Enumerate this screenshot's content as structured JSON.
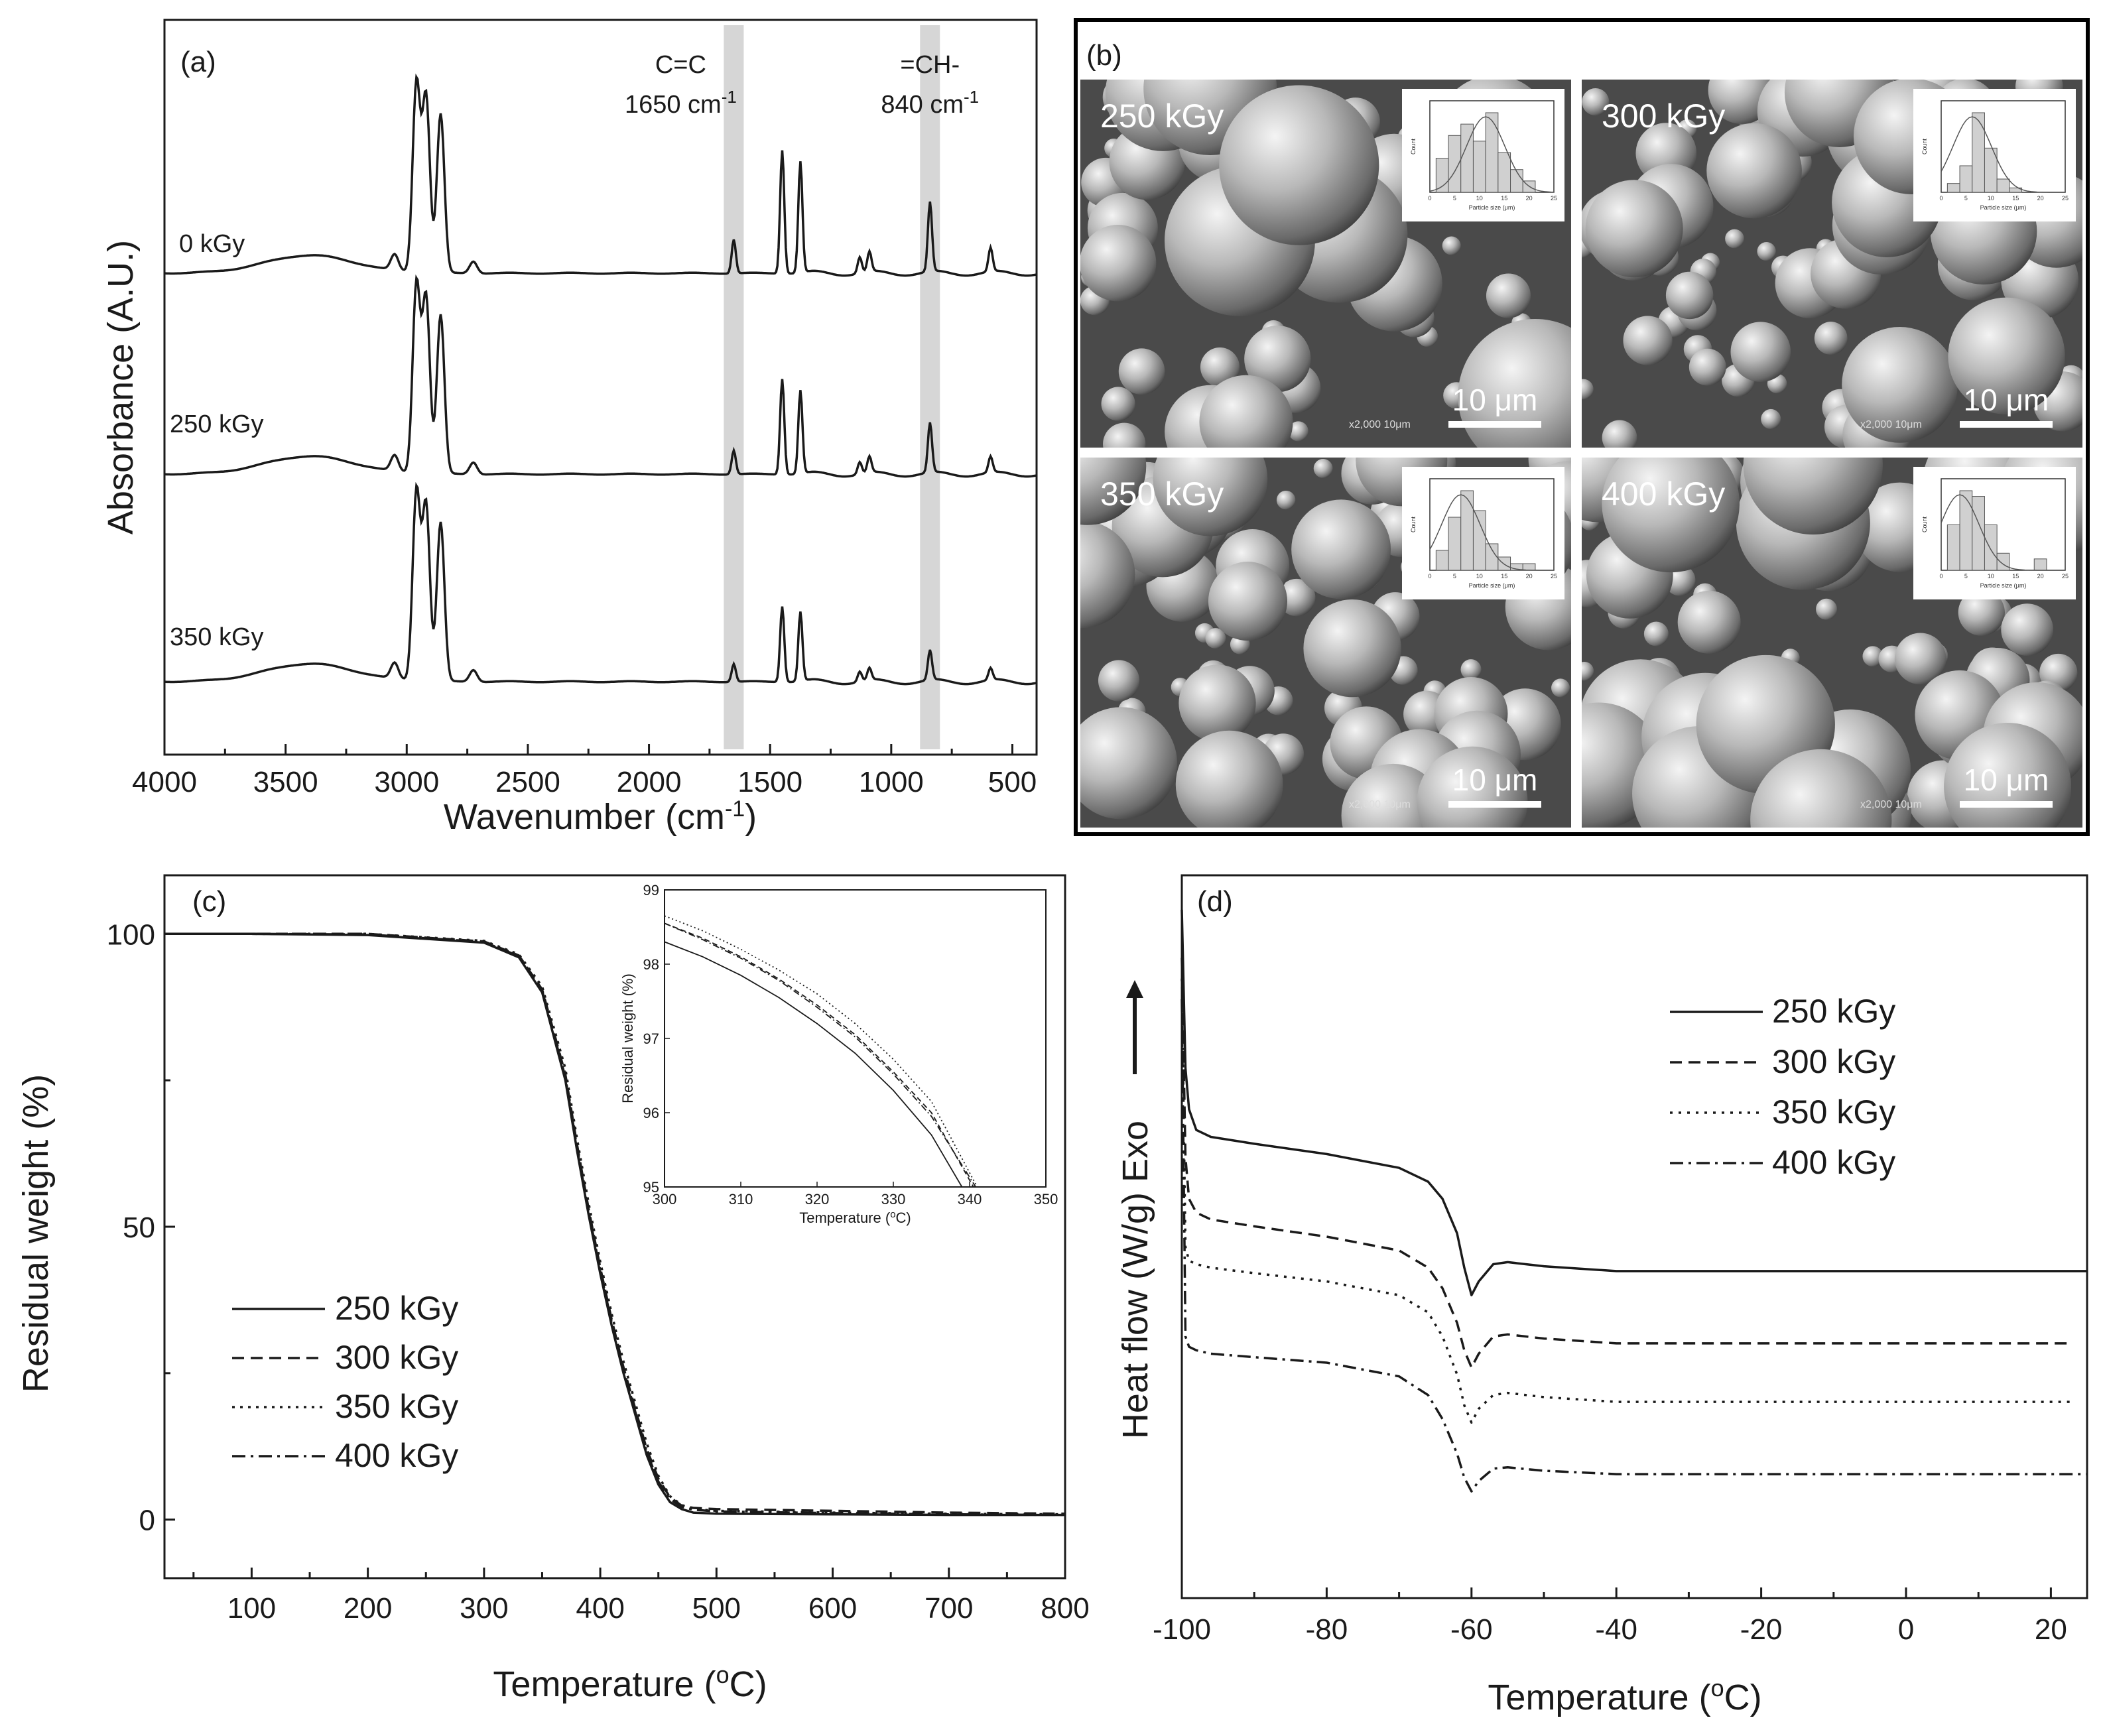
{
  "chart_data": [
    {
      "id": "a",
      "panel_label": "(a)",
      "type": "line",
      "xlabel_main": "Wavenumber (cm",
      "xlabel_sup": "-1",
      "xlabel_end": ")",
      "ylabel": "Absorbance (A.U.)",
      "xlim": [
        4000,
        400
      ],
      "xticks": [
        "4000",
        "3500",
        "3000",
        "2500",
        "2000",
        "1500",
        "1000",
        "500"
      ],
      "xtick_values": [
        4000,
        3500,
        3000,
        2500,
        2000,
        1500,
        1000,
        500
      ],
      "highlight_bands": [
        {
          "center": 1650,
          "label_line1": "C=C",
          "label_line2_main": "1650 cm",
          "label_line2_sup": "-1"
        },
        {
          "center": 840,
          "label_line1": "=CH-",
          "label_line2_main": "840 cm",
          "label_line2_sup": "-1"
        }
      ],
      "series": [
        {
          "name": "0 kGy",
          "peaks": [
            [
              3050,
              0.08
            ],
            [
              2960,
              0.95
            ],
            [
              2920,
              0.88
            ],
            [
              2860,
              0.8
            ],
            [
              2725,
              0.06
            ],
            [
              1650,
              0.17
            ],
            [
              1450,
              0.62
            ],
            [
              1375,
              0.56
            ],
            [
              1130,
              0.08
            ],
            [
              1090,
              0.1
            ],
            [
              840,
              0.35
            ],
            [
              590,
              0.12
            ]
          ]
        },
        {
          "name": "250 kGy",
          "peaks": [
            [
              3050,
              0.08
            ],
            [
              2960,
              0.95
            ],
            [
              2920,
              0.88
            ],
            [
              2860,
              0.8
            ],
            [
              2725,
              0.06
            ],
            [
              1650,
              0.12
            ],
            [
              1450,
              0.48
            ],
            [
              1375,
              0.42
            ],
            [
              1130,
              0.06
            ],
            [
              1090,
              0.08
            ],
            [
              840,
              0.25
            ],
            [
              590,
              0.08
            ]
          ]
        },
        {
          "name": "350 kGy",
          "peaks": [
            [
              3050,
              0.08
            ],
            [
              2960,
              0.95
            ],
            [
              2920,
              0.88
            ],
            [
              2860,
              0.8
            ],
            [
              2725,
              0.06
            ],
            [
              1650,
              0.09
            ],
            [
              1450,
              0.38
            ],
            [
              1375,
              0.35
            ],
            [
              1130,
              0.05
            ],
            [
              1090,
              0.06
            ],
            [
              840,
              0.15
            ],
            [
              590,
              0.06
            ]
          ]
        }
      ]
    },
    {
      "id": "b",
      "panel_label": "(b)",
      "type": "table",
      "images": [
        {
          "label": "250 kGy",
          "scale": "10 μm",
          "meta": "x2,000    10μm",
          "hist": [
            6,
            10,
            12,
            9,
            14,
            7,
            4,
            2
          ],
          "hist_ylabel": "Count",
          "hist_xlabel": "Particle size (μm)",
          "hist_xticks": [
            "0",
            "5",
            "10",
            "15",
            "20",
            "25"
          ]
        },
        {
          "label": "300 kGy",
          "scale": "10 μm",
          "meta": "x2,000    10μm",
          "hist": [
            2,
            6,
            18,
            10,
            3,
            1
          ],
          "hist_ylabel": "Count",
          "hist_xlabel": "Particle size (μm)",
          "hist_xticks": [
            "0",
            "5",
            "10",
            "15",
            "20",
            "25"
          ]
        },
        {
          "label": "350 kGy",
          "scale": "10 μm",
          "meta": "x2,000    10μm",
          "hist": [
            3,
            8,
            12,
            9,
            4,
            2,
            1,
            1
          ],
          "hist_ylabel": "Count",
          "hist_xlabel": "Particle size (μm)",
          "hist_xticks": [
            "0",
            "5",
            "10",
            "15",
            "20",
            "25"
          ]
        },
        {
          "label": "400 kGy",
          "scale": "10 μm",
          "meta": "x2,000    10μm",
          "hist": [
            8,
            14,
            13,
            8,
            3,
            0,
            0,
            2
          ],
          "hist_ylabel": "Count",
          "hist_xlabel": "Particle size (μm)",
          "hist_xticks": [
            "0",
            "5",
            "10",
            "15",
            "20",
            "25"
          ]
        }
      ]
    },
    {
      "id": "c",
      "panel_label": "(c)",
      "type": "line",
      "xlabel_main": "Temperature (",
      "xlabel_sup": "o",
      "xlabel_end": "C)",
      "ylabel": "Residual weight (%)",
      "xlim": [
        25,
        800
      ],
      "ylim": [
        -10,
        110
      ],
      "xticks": [
        "100",
        "200",
        "300",
        "400",
        "500",
        "600",
        "700",
        "800"
      ],
      "xtick_values": [
        100,
        200,
        300,
        400,
        500,
        600,
        700,
        800
      ],
      "yticks": [
        "0",
        "50",
        "100"
      ],
      "ytick_values": [
        0,
        50,
        100
      ],
      "series": [
        {
          "name": "250 kGy",
          "dash": "",
          "x": [
            25,
            100,
            200,
            300,
            330,
            350,
            370,
            380,
            390,
            400,
            410,
            420,
            430,
            440,
            450,
            460,
            470,
            480,
            500,
            600,
            700,
            800
          ],
          "y": [
            100,
            100,
            99.8,
            98.5,
            96,
            90,
            75,
            63,
            52,
            42,
            33,
            25,
            18,
            11,
            6,
            3,
            1.8,
            1.2,
            1.0,
            0.9,
            0.8,
            0.8
          ]
        },
        {
          "name": "300 kGy",
          "dash": "18,10",
          "x": [
            25,
            100,
            200,
            300,
            330,
            350,
            370,
            380,
            390,
            400,
            410,
            420,
            430,
            440,
            450,
            460,
            470,
            480,
            500,
            600,
            700,
            800
          ],
          "y": [
            100,
            100,
            100,
            98.7,
            96.3,
            90.5,
            76,
            64,
            53,
            43,
            34,
            26,
            19,
            12,
            7,
            3.8,
            2.4,
            2.0,
            1.8,
            1.5,
            1.2,
            1.0
          ]
        },
        {
          "name": "350 kGy",
          "dash": "4,8",
          "x": [
            25,
            100,
            200,
            300,
            330,
            350,
            370,
            380,
            390,
            400,
            410,
            420,
            430,
            440,
            450,
            460,
            470,
            480,
            500,
            600,
            700,
            800
          ],
          "y": [
            100,
            100,
            100,
            98.8,
            96.5,
            91,
            77,
            65,
            54,
            44,
            35,
            27,
            20,
            13,
            7.5,
            4,
            2.5,
            1.8,
            1.5,
            1.2,
            1.0,
            0.9
          ]
        },
        {
          "name": "400 kGy",
          "dash": "20,8,4,8",
          "x": [
            25,
            100,
            200,
            300,
            330,
            350,
            370,
            380,
            390,
            400,
            410,
            420,
            430,
            440,
            450,
            460,
            470,
            480,
            500,
            600,
            700,
            800
          ],
          "y": [
            100,
            100,
            99.9,
            98.6,
            96.2,
            90.3,
            75.5,
            63.5,
            52.5,
            42.5,
            33.5,
            25.5,
            18.5,
            11.5,
            6.5,
            3.5,
            2.2,
            1.7,
            1.4,
            1.1,
            0.9,
            0.8
          ]
        }
      ],
      "inset": {
        "xlabel_main": "Temperature (",
        "xlabel_sup": "o",
        "xlabel_end": "C)",
        "ylabel": "Residual weight (%)",
        "xlim": [
          300,
          350
        ],
        "ylim": [
          95,
          99
        ],
        "xticks": [
          "300",
          "310",
          "320",
          "330",
          "340",
          "350"
        ],
        "xtick_values": [
          300,
          310,
          320,
          330,
          340,
          350
        ],
        "yticks": [
          "95",
          "96",
          "97",
          "98",
          "99"
        ],
        "ytick_values": [
          95,
          96,
          97,
          98,
          99
        ],
        "series": [
          {
            "name": "250 kGy",
            "dash": "",
            "x": [
              300,
              305,
              310,
              315,
              320,
              325,
              330,
              335,
              339
            ],
            "y": [
              98.3,
              98.1,
              97.85,
              97.55,
              97.2,
              96.8,
              96.3,
              95.7,
              95.0
            ]
          },
          {
            "name": "300 kGy",
            "dash": "8,5",
            "x": [
              300,
              305,
              310,
              315,
              320,
              325,
              330,
              335,
              340.5
            ],
            "y": [
              98.55,
              98.35,
              98.1,
              97.8,
              97.45,
              97.05,
              96.55,
              96.0,
              95.0
            ]
          },
          {
            "name": "350 kGy",
            "dash": "2,4",
            "x": [
              300,
              305,
              310,
              315,
              320,
              325,
              330,
              335,
              341
            ],
            "y": [
              98.65,
              98.45,
              98.2,
              97.92,
              97.6,
              97.2,
              96.72,
              96.15,
              95.0
            ]
          },
          {
            "name": "400 kGy",
            "dash": "10,4,2,4",
            "x": [
              300,
              305,
              310,
              315,
              320,
              325,
              330,
              335,
              340.8
            ],
            "y": [
              98.55,
              98.33,
              98.08,
              97.78,
              97.42,
              97.02,
              96.52,
              95.95,
              95.0
            ]
          }
        ]
      }
    },
    {
      "id": "d",
      "panel_label": "(d)",
      "type": "line",
      "xlabel_main": "Temperature (",
      "xlabel_sup": "o",
      "xlabel_end": "C)",
      "ylabel": "Heat flow (W/g) Exo",
      "xlim": [
        -100,
        25
      ],
      "xticks": [
        "-100",
        "-80",
        "-60",
        "-40",
        "-20",
        "0",
        "20"
      ],
      "xtick_values": [
        -100,
        -80,
        -60,
        -40,
        -20,
        0,
        20
      ],
      "series": [
        {
          "name": "250 kGy",
          "dash": "",
          "x": [
            -100,
            -99.5,
            -99,
            -98,
            -96,
            -90,
            -80,
            -70,
            -66,
            -64,
            -62,
            -61,
            -60,
            -59,
            -57,
            -55,
            -50,
            -40,
            25
          ],
          "y": [
            10.5,
            8.2,
            7.6,
            7.3,
            7.2,
            7.1,
            6.95,
            6.75,
            6.55,
            6.3,
            5.8,
            5.3,
            4.9,
            5.1,
            5.35,
            5.38,
            5.32,
            5.25,
            5.25
          ]
        },
        {
          "name": "300 kGy",
          "dash": "18,10",
          "x": [
            -100,
            -99.5,
            -99,
            -98,
            -96,
            -90,
            -80,
            -70,
            -66,
            -64,
            -62,
            -61,
            -60,
            -59,
            -57,
            -55,
            -50,
            -40,
            23
          ],
          "y": [
            9.8,
            6.9,
            6.3,
            6.1,
            6.0,
            5.9,
            5.75,
            5.55,
            5.3,
            5.0,
            4.5,
            4.1,
            3.85,
            4.05,
            4.3,
            4.33,
            4.27,
            4.2,
            4.2
          ]
        },
        {
          "name": "350 kGy",
          "dash": "4,9",
          "x": [
            -100,
            -99.5,
            -99,
            -98,
            -96,
            -90,
            -80,
            -70,
            -66,
            -64,
            -62,
            -61,
            -60,
            -59,
            -57,
            -55,
            -50,
            -40,
            23
          ],
          "y": [
            9.5,
            5.6,
            5.4,
            5.35,
            5.3,
            5.22,
            5.1,
            4.9,
            4.65,
            4.3,
            3.75,
            3.3,
            3.05,
            3.25,
            3.45,
            3.48,
            3.42,
            3.35,
            3.35
          ]
        },
        {
          "name": "400 kGy",
          "dash": "20,8,4,8",
          "x": [
            -100,
            -99.5,
            -99,
            -98,
            -96,
            -90,
            -80,
            -70,
            -66,
            -64,
            -62,
            -61,
            -60,
            -59,
            -57,
            -55,
            -50,
            -40,
            25
          ],
          "y": [
            9.2,
            4.3,
            4.15,
            4.1,
            4.05,
            4.0,
            3.92,
            3.72,
            3.45,
            3.1,
            2.6,
            2.25,
            2.05,
            2.2,
            2.38,
            2.4,
            2.35,
            2.3,
            2.3
          ]
        }
      ]
    }
  ]
}
